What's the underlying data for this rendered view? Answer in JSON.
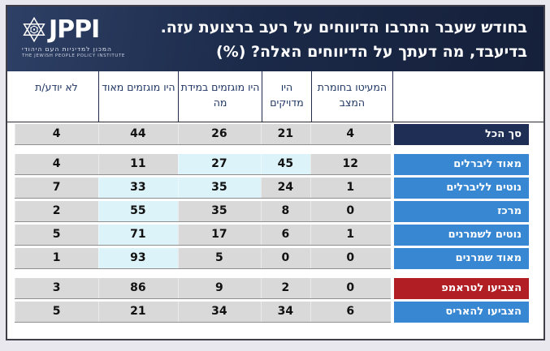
{
  "header": {
    "logo": {
      "acronym": "JPPI",
      "hebrew_name": "המכון למדיניות העם היהודי",
      "english_name": "THE JEWISH PEOPLE POLICY INSTITUTE"
    },
    "title_line1": "בחודש שעבר התרבו הדיווחים על רעב ברצועת עזה.",
    "title_line2": "בדיעבד, מה דעתך על הדיווחים האלה? (%)"
  },
  "colors": {
    "page_bg": "#e9e8ee",
    "header_navy": "#1b2948",
    "total_label": "#1f2e55",
    "blue_label": "#3787d3",
    "red_label": "#b11f24",
    "cell_gray": "#d9d9d9",
    "cell_highlight": "#dcf3f9",
    "header_text": "#1e3563"
  },
  "chart_data": {
    "type": "table",
    "unit": "%",
    "direction": "rtl",
    "columns": [
      "המעיטו בחומרת המצב",
      "היו מדויקים",
      "היו מוגזמים במידת מה",
      "היו מוגזמים מאוד",
      "לא יודע/ת"
    ],
    "sections": [
      {
        "name": "total",
        "rows": [
          {
            "label": "סך הכל",
            "label_color": "navy",
            "values": [
              4,
              21,
              26,
              44,
              4
            ],
            "highlighted": []
          }
        ]
      },
      {
        "name": "ideology",
        "rows": [
          {
            "label": "מאוד ליברלים",
            "label_color": "blue",
            "values": [
              12,
              45,
              27,
              11,
              4
            ],
            "highlighted": [
              1,
              2
            ]
          },
          {
            "label": "נוטים לליברלים",
            "label_color": "blue",
            "values": [
              1,
              24,
              35,
              33,
              7
            ],
            "highlighted": [
              2,
              3
            ]
          },
          {
            "label": "מרכז",
            "label_color": "blue",
            "values": [
              0,
              8,
              35,
              55,
              2
            ],
            "highlighted": [
              3
            ]
          },
          {
            "label": "נוטים לשמרנים",
            "label_color": "blue",
            "values": [
              1,
              6,
              17,
              71,
              5
            ],
            "highlighted": [
              3
            ]
          },
          {
            "label": "מאוד שמרנים",
            "label_color": "blue",
            "values": [
              0,
              0,
              5,
              93,
              1
            ],
            "highlighted": [
              3
            ]
          }
        ]
      },
      {
        "name": "vote-2024",
        "rows": [
          {
            "label": "הצביעו לטראמפ",
            "label_color": "red",
            "values": [
              0,
              2,
              9,
              86,
              3
            ],
            "highlighted": []
          },
          {
            "label": "הצביעו להאריס",
            "label_color": "blue",
            "values": [
              6,
              34,
              34,
              21,
              5
            ],
            "highlighted": []
          }
        ]
      }
    ]
  }
}
